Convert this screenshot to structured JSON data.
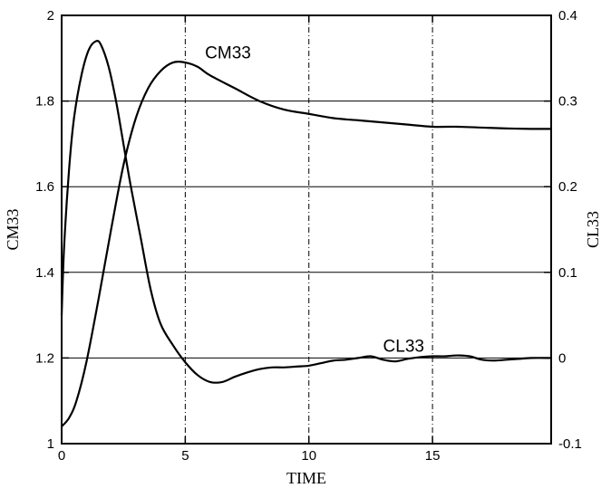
{
  "chart_data": {
    "type": "line",
    "xlabel": "TIME",
    "ylabel_left": "CM33",
    "ylabel_right": "CL33",
    "xlim": [
      0,
      19.8
    ],
    "ylim_left": [
      1,
      2
    ],
    "ylim_right": [
      -0.1,
      0.4
    ],
    "x_ticks": [
      0,
      5,
      10,
      15
    ],
    "x_tick_labels": [
      "0",
      "5",
      "10",
      "15"
    ],
    "y_left_ticks": [
      1,
      1.2,
      1.4,
      1.6,
      1.8,
      2
    ],
    "y_left_tick_labels": [
      "1",
      "1.2",
      "1.4",
      "1.6",
      "1.8",
      "2"
    ],
    "y_right_ticks": [
      -0.1,
      0,
      0.1,
      0.2,
      0.3,
      0.4
    ],
    "y_right_tick_labels": [
      "-0.1",
      "0",
      "0.1",
      "0.2",
      "0.3",
      "0.4"
    ],
    "grid": {
      "horizontal": true,
      "vertical_dashed": true,
      "vertical_at": [
        5,
        10,
        15
      ]
    },
    "series": [
      {
        "name": "CM33",
        "axis": "left",
        "x": [
          0,
          0.3,
          0.6,
          1.0,
          1.5,
          2.0,
          2.5,
          3.0,
          3.5,
          4.0,
          4.5,
          5.0,
          5.5,
          6.0,
          7.0,
          8.0,
          9.0,
          10.0,
          11.0,
          12.0,
          13.0,
          14.0,
          15.0,
          16.0,
          17.0,
          18.0,
          19.0,
          19.8
        ],
        "y": [
          1.04,
          1.06,
          1.1,
          1.19,
          1.34,
          1.5,
          1.65,
          1.76,
          1.83,
          1.87,
          1.89,
          1.89,
          1.88,
          1.86,
          1.83,
          1.8,
          1.78,
          1.77,
          1.76,
          1.755,
          1.75,
          1.745,
          1.74,
          1.74,
          1.738,
          1.736,
          1.735,
          1.735
        ]
      },
      {
        "name": "CL33",
        "axis": "right",
        "x": [
          0,
          0.1,
          0.3,
          0.5,
          0.8,
          1.1,
          1.4,
          1.6,
          1.9,
          2.2,
          2.5,
          2.8,
          3.2,
          3.6,
          4.0,
          4.5,
          5.0,
          5.5,
          6.0,
          6.5,
          7.0,
          7.5,
          8.0,
          8.5,
          9.0,
          9.5,
          10.0,
          10.5,
          11.0,
          11.5,
          12.0,
          12.5,
          13.0,
          13.5,
          14.0,
          14.5,
          15.0,
          15.5,
          16.0,
          16.5,
          17.0,
          17.5,
          18.0,
          18.5,
          19.0,
          19.8
        ],
        "y": [
          0.05,
          0.13,
          0.22,
          0.28,
          0.33,
          0.36,
          0.37,
          0.365,
          0.34,
          0.3,
          0.25,
          0.2,
          0.14,
          0.08,
          0.04,
          0.015,
          -0.005,
          -0.02,
          -0.028,
          -0.028,
          -0.022,
          -0.017,
          -0.013,
          -0.011,
          -0.011,
          -0.01,
          -0.009,
          -0.006,
          -0.003,
          -0.002,
          0.0,
          0.002,
          -0.002,
          -0.004,
          -0.001,
          0.001,
          0.002,
          0.002,
          0.003,
          0.002,
          -0.002,
          -0.003,
          -0.002,
          -0.001,
          0.0,
          0.0
        ]
      }
    ],
    "annotations": [
      {
        "text": "CM33",
        "x": 5.8,
        "y_left": 1.9
      },
      {
        "text": "CL33",
        "x": 13.0,
        "y_left": 1.215
      }
    ]
  }
}
